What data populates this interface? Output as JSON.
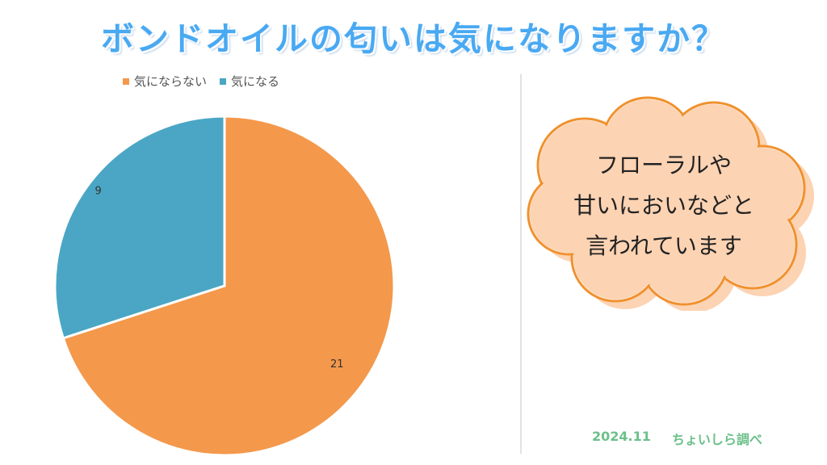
{
  "header": {
    "title": "ボンドオイルの匂いは気になりますか？"
  },
  "chart_data": {
    "type": "pie",
    "title": "",
    "series": [
      {
        "name": "気にならない",
        "value": 21,
        "color": "#f4984b"
      },
      {
        "name": "気になる",
        "value": 9,
        "color": "#4aa6c4"
      }
    ],
    "legend_position": "top-left",
    "data_labels": true
  },
  "note": {
    "lines": [
      "フローラルや",
      "甘いにおいなどと",
      "言われています"
    ],
    "fill_color": "#fcd3b3",
    "border_color": "#f0912e"
  },
  "footer": {
    "date": "2024.11",
    "source": "ちょいしら調べ",
    "color": "#6cc08a"
  }
}
